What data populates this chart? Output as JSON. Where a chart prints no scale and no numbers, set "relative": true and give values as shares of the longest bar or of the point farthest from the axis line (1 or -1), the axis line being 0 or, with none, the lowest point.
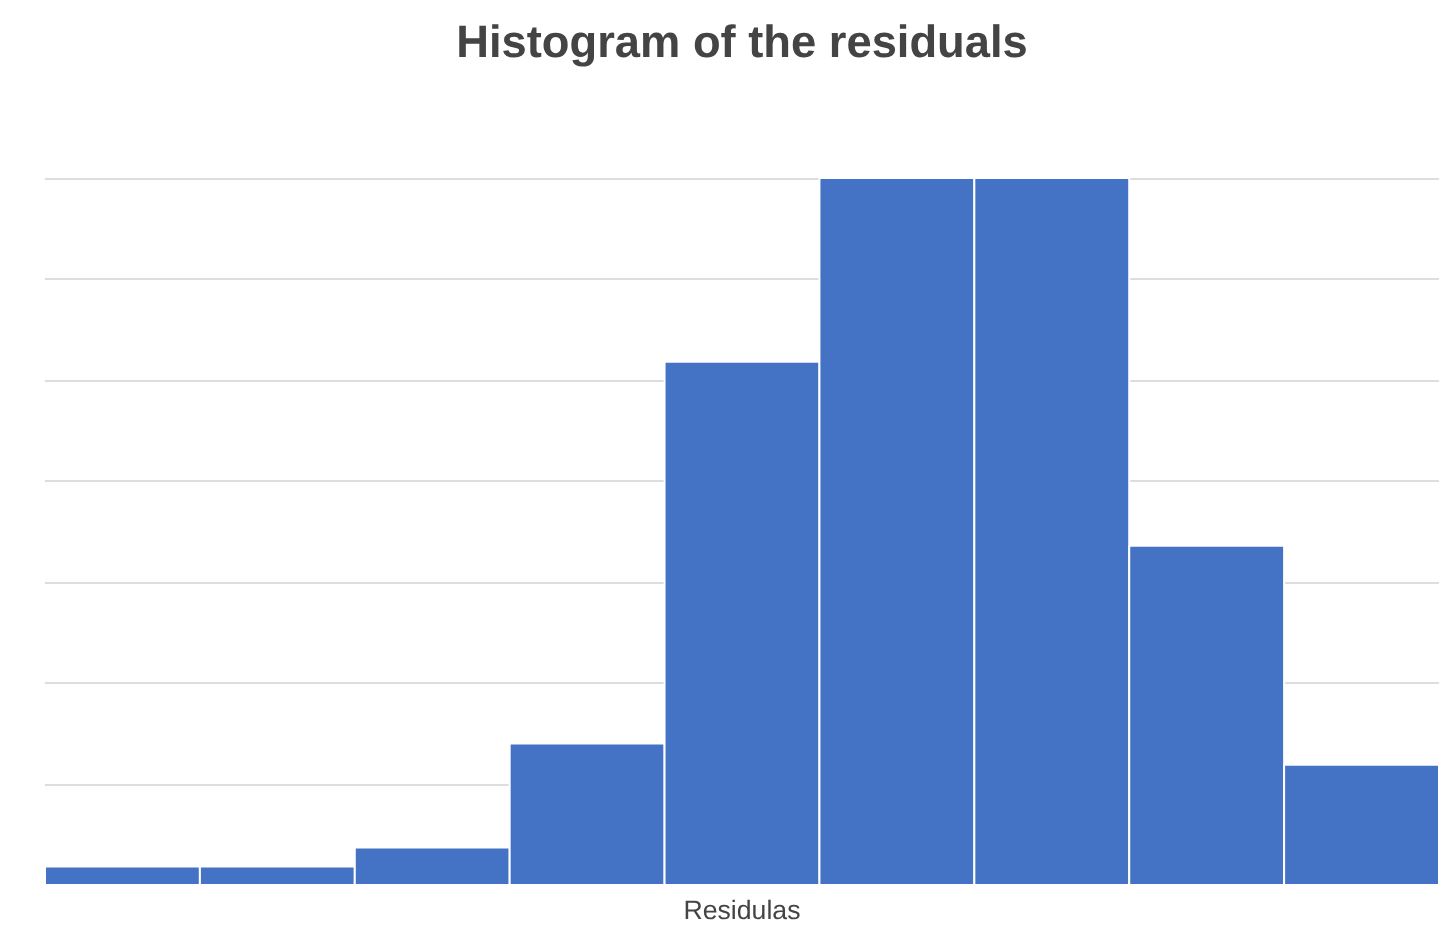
{
  "chart_data": {
    "type": "bar",
    "title": "Histogram of the residuals",
    "xlabel": "Residulas",
    "categories": [
      null,
      null,
      null,
      null,
      null,
      null,
      null,
      null,
      null
    ],
    "values": [
      0.026,
      0.026,
      0.053,
      0.2,
      0.74,
      1,
      1,
      0.48,
      0.17
    ],
    "color": "#4472c4",
    "relative": true,
    "grid": "y"
  }
}
